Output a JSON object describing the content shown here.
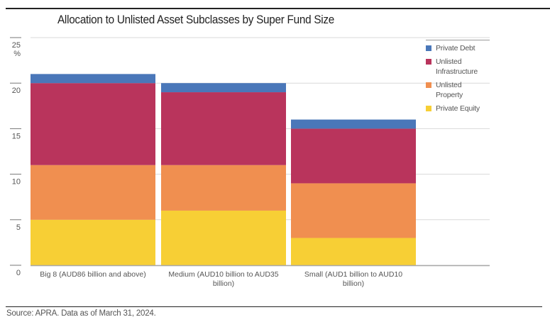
{
  "chart_data": {
    "type": "bar",
    "stacked": true,
    "title": "Allocation to Unlisted Asset Subclasses by Super Fund Size",
    "xlabel": "",
    "ylabel": "%",
    "ylim": [
      0,
      25
    ],
    "yticks": [
      0,
      5,
      10,
      15,
      20,
      25
    ],
    "grid": true,
    "legend_position": "right",
    "categories": [
      "Big 8 (AUD86 billion and above)",
      "Medium (AUD10 billion to AUD35 billion)",
      "Small (AUD1 billion to AUD10 billion)"
    ],
    "category_label_lines": [
      [
        "Big 8 (AUD86 billion and above)"
      ],
      [
        "Medium (AUD10 billion to AUD35",
        "billion)"
      ],
      [
        "Small (AUD1 billion to AUD10",
        "billion)"
      ]
    ],
    "series": [
      {
        "name": "Private Equity",
        "color": "#F7CF35",
        "values": [
          5.0,
          6.0,
          3.0
        ]
      },
      {
        "name": "Unlisted Property",
        "color": "#F08F50",
        "values": [
          6.0,
          5.0,
          6.0
        ]
      },
      {
        "name": "Unlisted Infrastructure",
        "color": "#B9345C",
        "values": [
          9.0,
          8.0,
          6.0
        ]
      },
      {
        "name": "Private Debt",
        "color": "#4A77B9",
        "values": [
          1.0,
          1.0,
          1.0
        ]
      }
    ],
    "legend_order": [
      "Private Debt",
      "Unlisted Infrastructure",
      "Unlisted Property",
      "Private Equity"
    ]
  },
  "legend": [
    {
      "label": "Private Debt",
      "color": "#4A77B9"
    },
    {
      "label": "Unlisted Infrastructure",
      "color": "#B9345C"
    },
    {
      "label": "Unlisted Property",
      "color": "#F08F50"
    },
    {
      "label": "Private Equity",
      "color": "#F7CF35"
    }
  ],
  "source": "Source: APRA. Data as of March 31, 2024."
}
